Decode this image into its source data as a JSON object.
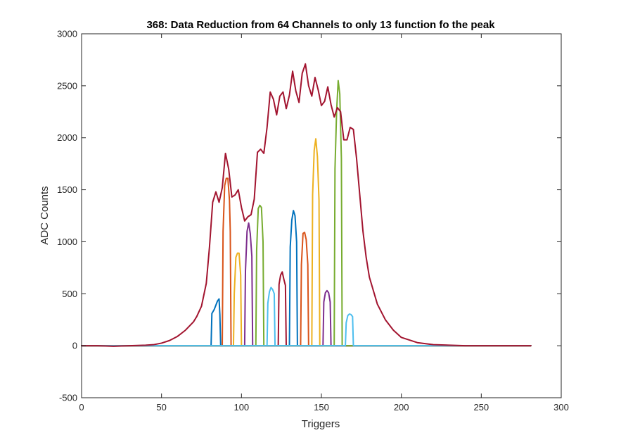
{
  "chart_data": {
    "type": "line",
    "title": "368: Data Reduction from 64 Channels to only 13 function fo the peak",
    "xlabel": "Triggers",
    "ylabel": "ADC Counts",
    "xlim": [
      0,
      300
    ],
    "ylim": [
      -500,
      3000
    ],
    "xticks": [
      0,
      50,
      100,
      150,
      200,
      250,
      300
    ],
    "yticks": [
      -500,
      0,
      500,
      1000,
      1500,
      2000,
      2500,
      3000
    ],
    "xtick_labels": [
      "0",
      "50",
      "100",
      "150",
      "200",
      "250",
      "300"
    ],
    "ytick_labels": [
      "-500",
      "0",
      "500",
      "1000",
      "1500",
      "2000",
      "2500",
      "3000"
    ],
    "grid": false,
    "legend": "none",
    "colors": {
      "blue": "#0072BD",
      "orange": "#D95319",
      "yellow": "#EDB120",
      "purple": "#7E2F8E",
      "green": "#77AC30",
      "cyan": "#4DBEEE",
      "darkred": "#A2142F"
    },
    "series": [
      {
        "color": "#0072BD",
        "x": [
          0,
          81,
          81.5,
          83,
          85,
          86,
          86.5,
          87,
          281
        ],
        "y": [
          0,
          0,
          310,
          350,
          430,
          450,
          300,
          0,
          0
        ]
      },
      {
        "color": "#D95319",
        "x": [
          0,
          88,
          88.5,
          89.5,
          90.5,
          91.5,
          92.5,
          93,
          93.5,
          281
        ],
        "y": [
          0,
          0,
          1100,
          1540,
          1610,
          1610,
          1400,
          1100,
          0,
          0
        ]
      },
      {
        "color": "#EDB120",
        "x": [
          0,
          95,
          95.5,
          96.5,
          97.5,
          98.5,
          99.5,
          100,
          281
        ],
        "y": [
          0,
          0,
          500,
          850,
          890,
          890,
          680,
          0,
          0
        ]
      },
      {
        "color": "#7E2F8E",
        "x": [
          0,
          102,
          102.5,
          103.5,
          104.5,
          105.5,
          106.5,
          107,
          281
        ],
        "y": [
          0,
          0,
          720,
          1100,
          1180,
          1080,
          860,
          0,
          0
        ]
      },
      {
        "color": "#77AC30",
        "x": [
          0,
          109,
          109.5,
          110.5,
          111.5,
          112.5,
          113.5,
          114,
          281
        ],
        "y": [
          0,
          0,
          920,
          1320,
          1350,
          1330,
          1000,
          0,
          0
        ]
      },
      {
        "color": "#4DBEEE",
        "x": [
          0,
          116,
          116.5,
          117.5,
          118.5,
          119.5,
          120.5,
          121,
          281
        ],
        "y": [
          0,
          0,
          410,
          520,
          560,
          540,
          500,
          0,
          0
        ]
      },
      {
        "color": "#A2142F",
        "x": [
          0,
          123,
          123.5,
          124.5,
          125.5,
          126.5,
          127.5,
          128,
          281
        ],
        "y": [
          0,
          0,
          590,
          680,
          710,
          640,
          580,
          0,
          0
        ]
      },
      {
        "color": "#0072BD",
        "x": [
          0,
          130,
          130.5,
          131.5,
          132.5,
          133.5,
          134.5,
          135,
          281
        ],
        "y": [
          0,
          0,
          950,
          1210,
          1300,
          1250,
          1000,
          0,
          0
        ]
      },
      {
        "color": "#D95319",
        "x": [
          0,
          137,
          137.5,
          138.5,
          139.5,
          140.5,
          141.5,
          142,
          281
        ],
        "y": [
          0,
          0,
          780,
          1080,
          1090,
          1020,
          780,
          0,
          0
        ]
      },
      {
        "color": "#EDB120",
        "x": [
          0,
          144,
          144.5,
          145.5,
          146.5,
          147.5,
          148.5,
          149,
          281
        ],
        "y": [
          0,
          0,
          1450,
          1880,
          1990,
          1820,
          1400,
          0,
          0
        ]
      },
      {
        "color": "#7E2F8E",
        "x": [
          0,
          151,
          151.5,
          152.5,
          153.5,
          154.5,
          155.5,
          156,
          281
        ],
        "y": [
          0,
          0,
          420,
          510,
          530,
          510,
          420,
          0,
          0
        ]
      },
      {
        "color": "#77AC30",
        "x": [
          0,
          158,
          158.5,
          159.5,
          160.5,
          161.5,
          162.5,
          163,
          281
        ],
        "y": [
          0,
          0,
          1700,
          2250,
          2550,
          2420,
          1800,
          0,
          0
        ]
      },
      {
        "color": "#4DBEEE",
        "x": [
          0,
          165,
          165.5,
          166.5,
          167.5,
          168.5,
          169.5,
          170,
          281
        ],
        "y": [
          0,
          0,
          220,
          290,
          305,
          300,
          280,
          0,
          0
        ]
      },
      {
        "color": "#A2142F",
        "x": [
          0,
          10,
          20,
          30,
          40,
          45,
          50,
          55,
          60,
          65,
          70,
          72,
          75,
          78,
          80,
          82,
          84,
          86,
          88,
          90,
          92,
          94,
          96,
          98,
          100,
          102,
          104,
          106,
          108,
          110,
          112,
          114,
          116,
          118,
          120,
          122,
          124,
          126,
          128,
          130,
          132,
          134,
          136,
          138,
          140,
          142,
          144,
          146,
          148,
          150,
          152,
          154,
          156,
          158,
          160,
          162,
          164,
          166,
          168,
          170,
          172,
          174,
          176,
          178,
          180,
          185,
          190,
          195,
          200,
          210,
          220,
          230,
          240,
          250,
          260,
          270,
          281
        ],
        "y": [
          0,
          0,
          -5,
          0,
          5,
          10,
          25,
          50,
          90,
          150,
          230,
          280,
          380,
          600,
          950,
          1380,
          1480,
          1380,
          1520,
          1850,
          1700,
          1430,
          1450,
          1500,
          1330,
          1200,
          1240,
          1260,
          1410,
          1860,
          1890,
          1850,
          2100,
          2440,
          2370,
          2220,
          2400,
          2440,
          2280,
          2410,
          2640,
          2450,
          2340,
          2620,
          2710,
          2500,
          2400,
          2580,
          2460,
          2310,
          2350,
          2490,
          2320,
          2200,
          2290,
          2250,
          1980,
          1980,
          2100,
          2080,
          1800,
          1450,
          1100,
          850,
          660,
          400,
          250,
          150,
          80,
          30,
          10,
          5,
          0,
          0,
          0,
          0,
          0
        ]
      }
    ]
  }
}
